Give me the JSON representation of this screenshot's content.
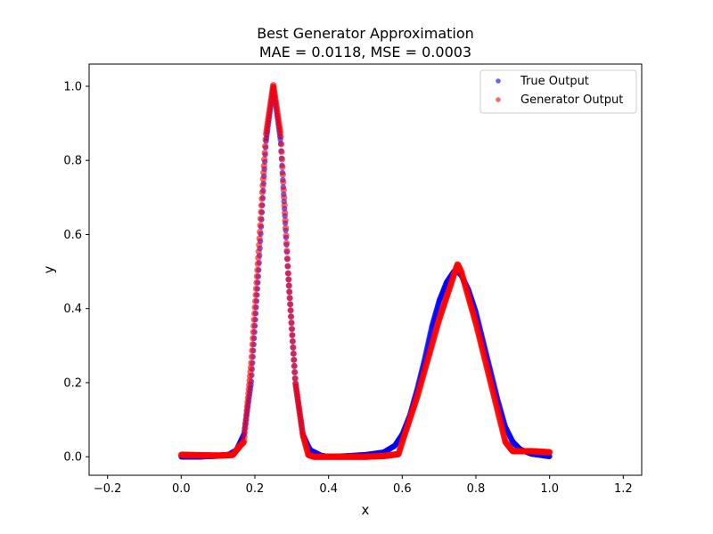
{
  "chart_data": {
    "type": "scatter",
    "title": "Best Generator Approximation",
    "subtitle": "MAE = 0.0118, MSE = 0.0003",
    "xlabel": "x",
    "ylabel": "y",
    "xlim": [
      -0.25,
      1.25
    ],
    "ylim": [
      -0.05,
      1.06
    ],
    "x_ticks": [
      -0.2,
      0.0,
      0.2,
      0.4,
      0.6,
      0.8,
      1.0,
      1.2
    ],
    "x_tick_labels": [
      "−0.2",
      "0.0",
      "0.2",
      "0.4",
      "0.6",
      "0.8",
      "1.0",
      "1.2"
    ],
    "y_ticks": [
      0.0,
      0.2,
      0.4,
      0.6,
      0.8,
      1.0
    ],
    "y_tick_labels": [
      "0.0",
      "0.2",
      "0.4",
      "0.6",
      "0.8",
      "1.0"
    ],
    "grid": false,
    "legend_position": "top-right",
    "series": [
      {
        "name": "True Output",
        "color": "#0000ff",
        "x": [
          0.0,
          0.05,
          0.1,
          0.13,
          0.15,
          0.17,
          0.19,
          0.21,
          0.23,
          0.25,
          0.27,
          0.29,
          0.31,
          0.33,
          0.35,
          0.38,
          0.4,
          0.45,
          0.5,
          0.55,
          0.58,
          0.6,
          0.62,
          0.64,
          0.66,
          0.68,
          0.7,
          0.72,
          0.74,
          0.75,
          0.76,
          0.78,
          0.8,
          0.82,
          0.84,
          0.86,
          0.88,
          0.9,
          0.92,
          0.95,
          1.0
        ],
        "y": [
          0.0,
          0.0,
          0.002,
          0.006,
          0.018,
          0.06,
          0.2,
          0.5,
          0.85,
          1.0,
          0.85,
          0.5,
          0.2,
          0.06,
          0.018,
          0.003,
          0.0,
          0.002,
          0.005,
          0.012,
          0.03,
          0.06,
          0.11,
          0.18,
          0.26,
          0.35,
          0.42,
          0.47,
          0.5,
          0.5,
          0.49,
          0.45,
          0.39,
          0.31,
          0.23,
          0.15,
          0.08,
          0.04,
          0.02,
          0.008,
          0.001
        ]
      },
      {
        "name": "Generator Output",
        "color": "#ff0000",
        "x": [
          0.0,
          0.05,
          0.1,
          0.14,
          0.16,
          0.17,
          0.19,
          0.21,
          0.23,
          0.25,
          0.27,
          0.29,
          0.31,
          0.33,
          0.345,
          0.36,
          0.4,
          0.45,
          0.5,
          0.55,
          0.59,
          0.6,
          0.62,
          0.64,
          0.66,
          0.68,
          0.7,
          0.72,
          0.74,
          0.75,
          0.76,
          0.78,
          0.8,
          0.82,
          0.84,
          0.86,
          0.88,
          0.9,
          0.95,
          1.0
        ],
        "y": [
          0.005,
          0.004,
          0.003,
          0.005,
          0.03,
          0.04,
          0.25,
          0.55,
          0.87,
          1.005,
          0.87,
          0.5,
          0.2,
          0.06,
          0.005,
          0.0,
          0.0,
          0.0,
          0.0,
          0.002,
          0.007,
          0.04,
          0.1,
          0.16,
          0.23,
          0.3,
          0.37,
          0.43,
          0.49,
          0.52,
          0.5,
          0.43,
          0.36,
          0.28,
          0.2,
          0.12,
          0.04,
          0.015,
          0.015,
          0.012
        ]
      }
    ]
  }
}
